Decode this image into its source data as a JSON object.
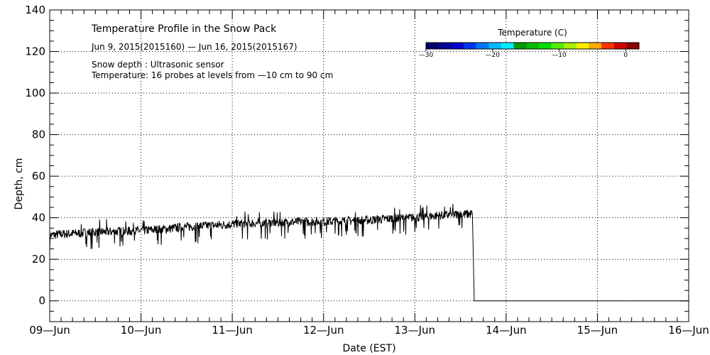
{
  "chart_data": {
    "type": "line",
    "title": "Temperature Profile in the Snow Pack",
    "subtitle": "Jun  9, 2015(2015160) — Jun 16, 2015(2015167)",
    "annotations": [
      "Snow depth : Ultrasonic sensor",
      "Temperature: 16 probes at levels from —10 cm to 90 cm"
    ],
    "xlabel": "Date (EST)",
    "ylabel": "Depth, cm",
    "xlim": [
      0,
      7
    ],
    "ylim": [
      -10,
      140
    ],
    "x_ticks": [
      {
        "value": 0,
        "label": "09—Jun"
      },
      {
        "value": 1,
        "label": "10—Jun"
      },
      {
        "value": 2,
        "label": "11—Jun"
      },
      {
        "value": 3,
        "label": "12—Jun"
      },
      {
        "value": 4,
        "label": "13—Jun"
      },
      {
        "value": 5,
        "label": "14—Jun"
      },
      {
        "value": 6,
        "label": "15—Jun"
      },
      {
        "value": 7,
        "label": "16—Jun"
      }
    ],
    "y_ticks": [
      {
        "value": 0,
        "label": "0"
      },
      {
        "value": 20,
        "label": "20"
      },
      {
        "value": 40,
        "label": "40"
      },
      {
        "value": 60,
        "label": "60"
      },
      {
        "value": 80,
        "label": "80"
      },
      {
        "value": 100,
        "label": "100"
      },
      {
        "value": 120,
        "label": "120"
      },
      {
        "value": 140,
        "label": "140"
      }
    ],
    "grid": true,
    "legend": {
      "title": "Temperature (C)",
      "placement": "top-right",
      "range": [
        -30,
        2
      ],
      "ticks": [
        {
          "value": -30,
          "label": "—30"
        },
        {
          "value": -20,
          "label": "—20"
        },
        {
          "value": -10,
          "label": "—10"
        },
        {
          "value": 0,
          "label": "0"
        }
      ],
      "colors": [
        "#000066",
        "#000099",
        "#0000cc",
        "#0033ee",
        "#0077ff",
        "#00bbff",
        "#00eeff",
        "#009900",
        "#00bb00",
        "#00dd00",
        "#55ee00",
        "#aaee00",
        "#ffee00",
        "#ffaa00",
        "#ff3300",
        "#cc0000",
        "#880000"
      ]
    },
    "series": [
      {
        "name": "Snow depth",
        "color": "#000000",
        "points": [
          [
            0.0,
            31.5
          ],
          [
            0.1,
            32.0
          ],
          [
            0.25,
            32.4
          ],
          [
            0.5,
            33.0
          ],
          [
            0.75,
            33.4
          ],
          [
            1.0,
            33.8
          ],
          [
            1.25,
            34.5
          ],
          [
            1.5,
            35.6
          ],
          [
            1.75,
            36.2
          ],
          [
            2.0,
            36.9
          ],
          [
            2.25,
            37.4
          ],
          [
            2.5,
            37.7
          ],
          [
            2.75,
            38.0
          ],
          [
            3.0,
            38.1
          ],
          [
            3.25,
            38.4
          ],
          [
            3.5,
            38.9
          ],
          [
            3.75,
            39.6
          ],
          [
            4.0,
            40.1
          ],
          [
            4.25,
            41.0
          ],
          [
            4.5,
            41.6
          ],
          [
            4.6,
            41.8
          ],
          [
            4.63,
            42.0
          ],
          [
            4.64,
            22.0
          ],
          [
            4.65,
            0.0
          ],
          [
            7.0,
            0.0
          ]
        ]
      }
    ]
  }
}
